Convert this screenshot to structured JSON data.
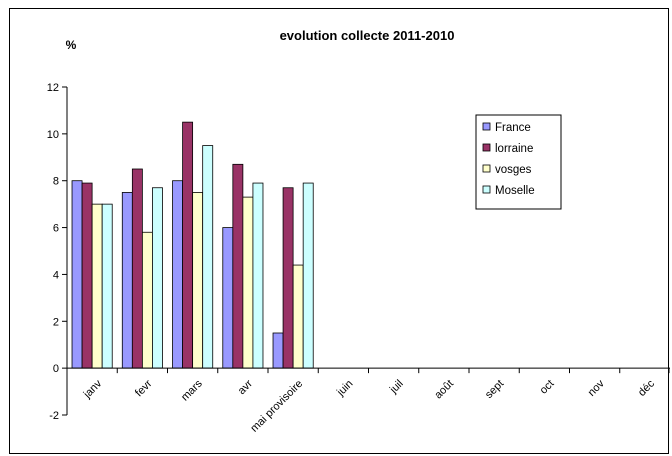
{
  "chart_data": {
    "type": "bar",
    "title": "evolution collecte 2011-2010",
    "ylabel": "%",
    "xlabel": "",
    "ylim": [
      -2,
      12
    ],
    "yticks": [
      -2,
      0,
      2,
      4,
      6,
      8,
      10,
      12
    ],
    "grid": false,
    "legend_position": "right",
    "categories": [
      "janv",
      "fevr",
      "mars",
      "avr",
      "mai provisoire",
      "juin",
      "juil",
      "août",
      "sept",
      "oct",
      "nov",
      "déc"
    ],
    "series": [
      {
        "name": "France",
        "color": "#9999ff",
        "values": [
          8.0,
          7.5,
          8.0,
          6.0,
          1.5,
          null,
          null,
          null,
          null,
          null,
          null,
          null
        ]
      },
      {
        "name": "lorraine",
        "color": "#993366",
        "values": [
          7.9,
          8.5,
          10.5,
          8.7,
          7.7,
          null,
          null,
          null,
          null,
          null,
          null,
          null
        ]
      },
      {
        "name": "vosges",
        "color": "#ffffcc",
        "values": [
          7.0,
          5.8,
          7.5,
          7.3,
          4.4,
          null,
          null,
          null,
          null,
          null,
          null,
          null
        ]
      },
      {
        "name": "Moselle",
        "color": "#ccffff",
        "values": [
          7.0,
          7.7,
          9.5,
          7.9,
          7.9,
          null,
          null,
          null,
          null,
          null,
          null,
          null
        ]
      }
    ]
  }
}
